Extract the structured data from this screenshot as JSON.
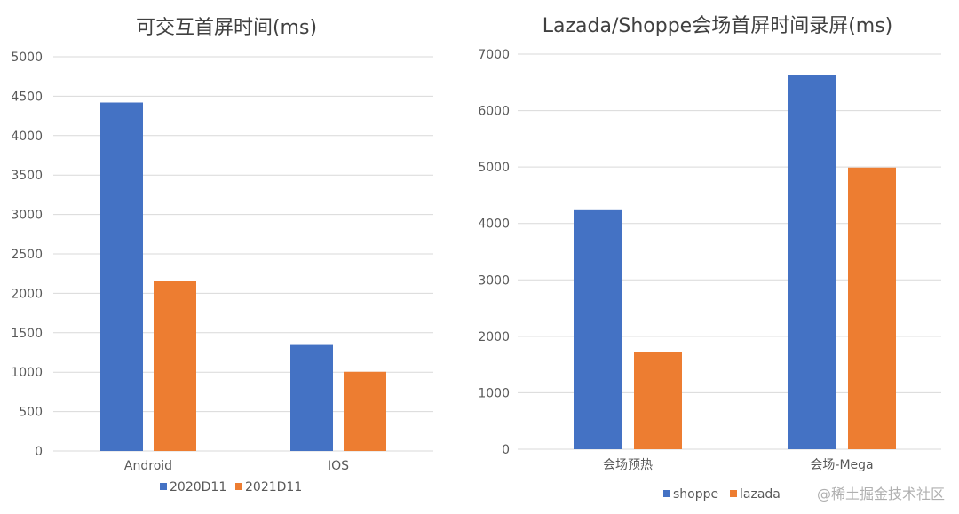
{
  "chart_data": [
    {
      "type": "bar",
      "title": "可交互首屏时间(ms)",
      "categories": [
        "Android",
        "IOS"
      ],
      "series": [
        {
          "name": "2020D11",
          "values": [
            4420,
            1345
          ]
        },
        {
          "name": "2021D11",
          "values": [
            2160,
            1005
          ]
        }
      ],
      "xlabel": "",
      "ylabel": "",
      "ylim": [
        0,
        5000
      ],
      "yticks": [
        0,
        500,
        1000,
        1500,
        2000,
        2500,
        3000,
        3500,
        4000,
        4500,
        5000
      ],
      "grid": true,
      "legend_position": "bottom"
    },
    {
      "type": "bar",
      "title": "Lazada/Shoppe会场首屏时间录屏(ms)",
      "categories": [
        "会场预热",
        "会场-Mega"
      ],
      "series": [
        {
          "name": "shoppe",
          "values": [
            4250,
            6630
          ]
        },
        {
          "name": "lazada",
          "values": [
            1720,
            4990
          ]
        }
      ],
      "xlabel": "",
      "ylabel": "",
      "ylim": [
        0,
        7000
      ],
      "yticks": [
        0,
        1000,
        2000,
        3000,
        4000,
        5000,
        6000,
        7000
      ],
      "grid": true,
      "legend_position": "bottom"
    }
  ],
  "colors": {
    "series_blue": "#4472C4",
    "series_orange": "#ED7D31",
    "grid": "#D9D9D9",
    "axis_text": "#595959",
    "title_text": "#404040"
  },
  "watermark": "@稀土掘金技术社区"
}
